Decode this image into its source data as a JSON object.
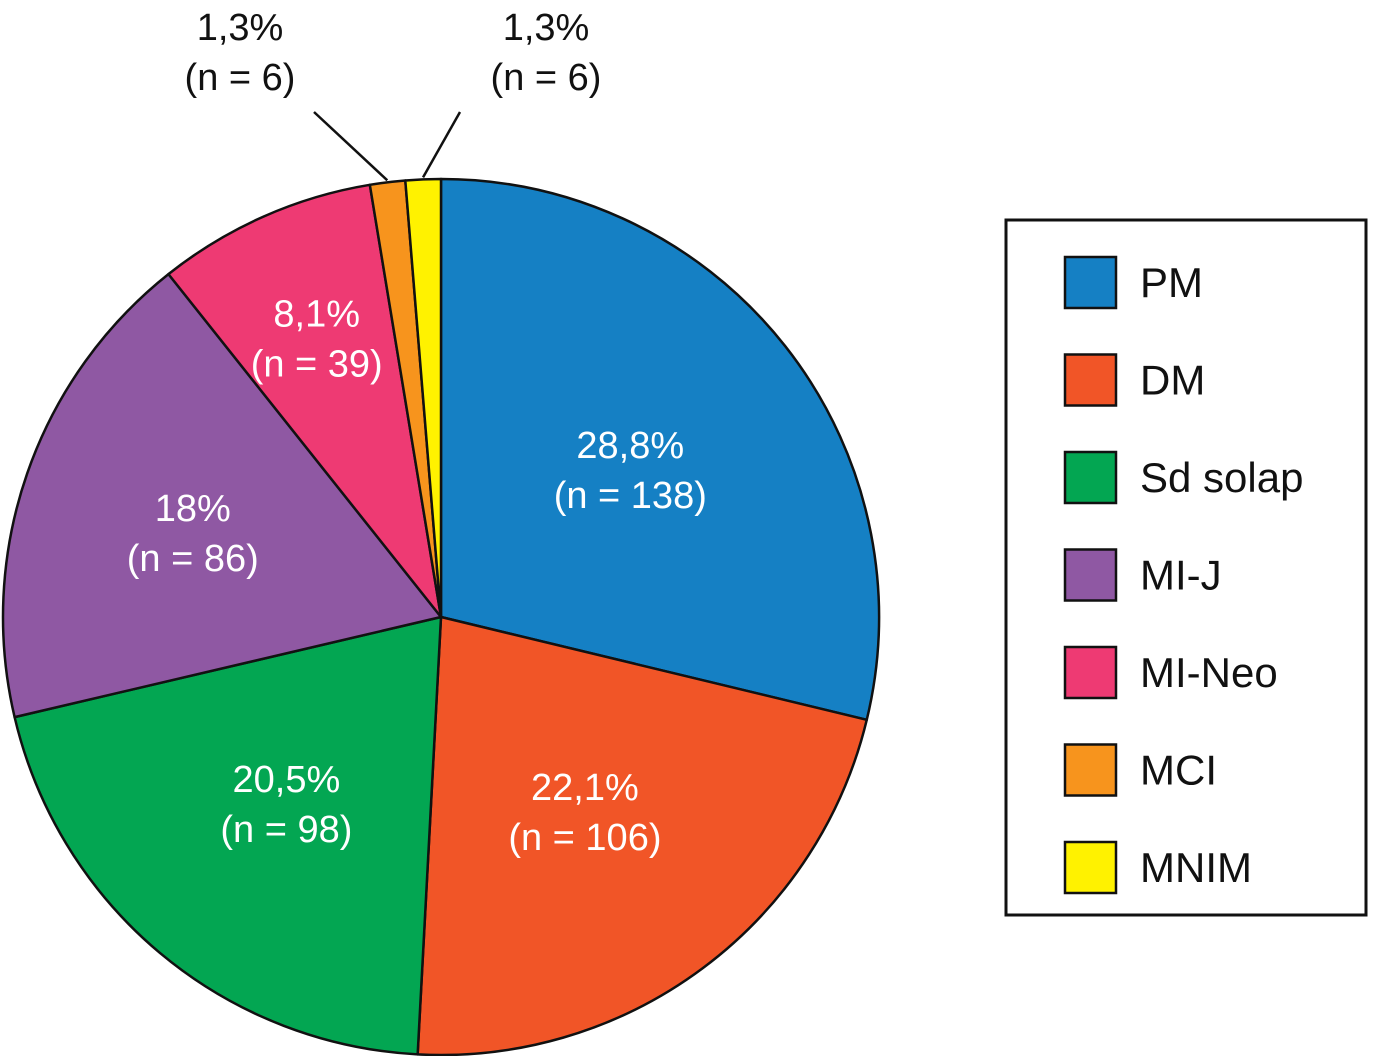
{
  "chart_data": {
    "type": "pie",
    "title": "",
    "slices": [
      {
        "name": "PM",
        "value": 28.8,
        "n": 138,
        "percent_label": "28,8%",
        "n_label": "(n = 138)",
        "color": "#1580c4",
        "label_position": "inside"
      },
      {
        "name": "DM",
        "value": 22.1,
        "n": 106,
        "percent_label": "22,1%",
        "n_label": "(n = 106)",
        "color": "#f15527",
        "label_position": "inside"
      },
      {
        "name": "Sd solap",
        "value": 20.5,
        "n": 98,
        "percent_label": "20,5%",
        "n_label": "(n = 98)",
        "color": "#03a652",
        "label_position": "inside"
      },
      {
        "name": "MI-J",
        "value": 18.0,
        "n": 86,
        "percent_label": "18%",
        "n_label": "(n = 86)",
        "color": "#8f58a3",
        "label_position": "inside"
      },
      {
        "name": "MI-Neo",
        "value": 8.1,
        "n": 39,
        "percent_label": "8,1%",
        "n_label": "(n = 39)",
        "color": "#ee3a73",
        "label_position": "inside"
      },
      {
        "name": "MCI",
        "value": 1.3,
        "n": 6,
        "percent_label": "1,3%",
        "n_label": "(n = 6)",
        "color": "#f7941d",
        "label_position": "outside"
      },
      {
        "name": "MNIM",
        "value": 1.3,
        "n": 6,
        "percent_label": "1,3%",
        "n_label": "(n = 6)",
        "color": "#fff200",
        "label_position": "outside"
      }
    ],
    "start_angle": "12 o'clock",
    "direction": "clockwise",
    "legend_position": "right"
  }
}
